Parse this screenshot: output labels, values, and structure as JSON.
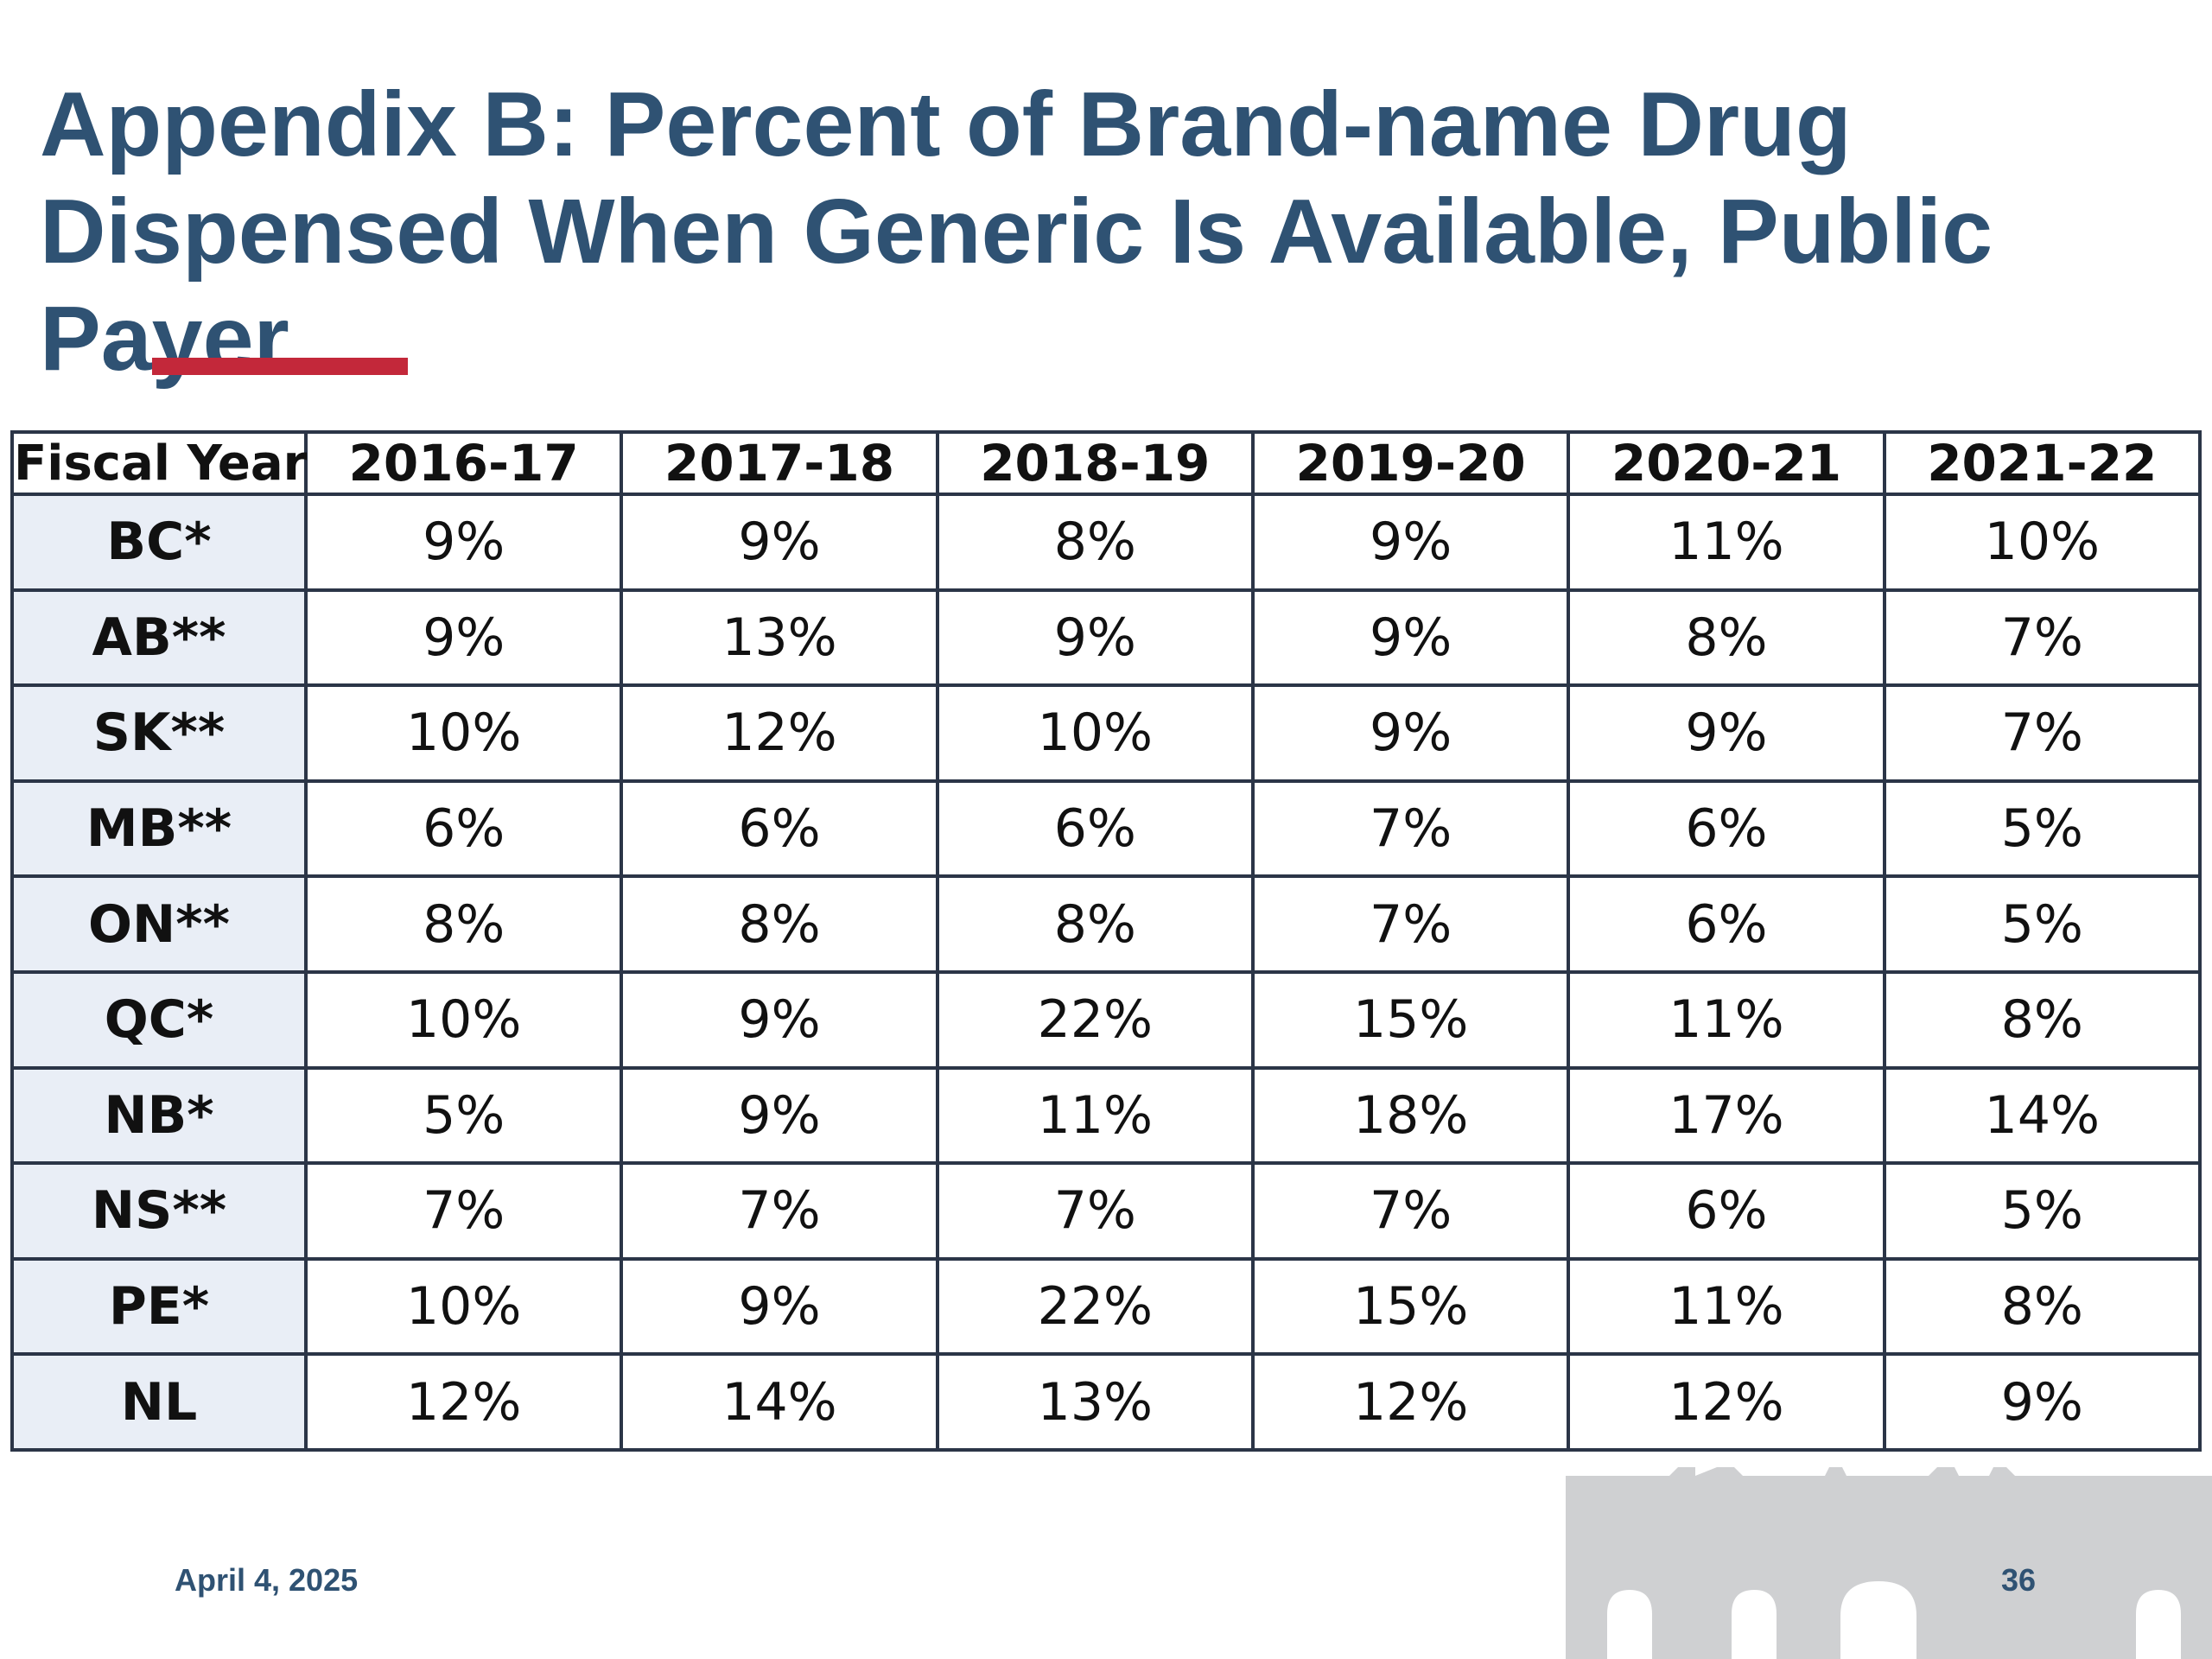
{
  "slide": {
    "title": "Appendix B: Percent of Brand-name Drug Dispensed When Generic Is Available, Public Payer",
    "footer_date": "April 4, 2025",
    "page_number": "36",
    "colors": {
      "title": "#2f5273",
      "accent": "#c3283a",
      "table_border": "#2b3547",
      "row_header_bg": "#e9eef6",
      "building_gray": "#cfd0d2"
    }
  },
  "table": {
    "corner_header": "Fiscal Year",
    "columns": [
      "2016-17",
      "2017-18",
      "2018-19",
      "2019-20",
      "2020-21",
      "2021-22"
    ],
    "rows": [
      {
        "label": "BC*",
        "values": [
          "9%",
          "9%",
          "8%",
          "9%",
          "11%",
          "10%"
        ]
      },
      {
        "label": "AB**",
        "values": [
          "9%",
          "13%",
          "9%",
          "9%",
          "8%",
          "7%"
        ]
      },
      {
        "label": "SK**",
        "values": [
          "10%",
          "12%",
          "10%",
          "9%",
          "9%",
          "7%"
        ]
      },
      {
        "label": "MB**",
        "values": [
          "6%",
          "6%",
          "6%",
          "7%",
          "6%",
          "5%"
        ]
      },
      {
        "label": "ON**",
        "values": [
          "8%",
          "8%",
          "8%",
          "7%",
          "6%",
          "5%"
        ]
      },
      {
        "label": "QC*",
        "values": [
          "10%",
          "9%",
          "22%",
          "15%",
          "11%",
          "8%"
        ]
      },
      {
        "label": "NB*",
        "values": [
          "5%",
          "9%",
          "11%",
          "18%",
          "17%",
          "14%"
        ]
      },
      {
        "label": "NS**",
        "values": [
          "7%",
          "7%",
          "7%",
          "7%",
          "6%",
          "5%"
        ]
      },
      {
        "label": "PE*",
        "values": [
          "10%",
          "9%",
          "22%",
          "15%",
          "11%",
          "8%"
        ]
      },
      {
        "label": "NL",
        "values": [
          "12%",
          "14%",
          "13%",
          "12%",
          "12%",
          "9%"
        ]
      }
    ]
  }
}
